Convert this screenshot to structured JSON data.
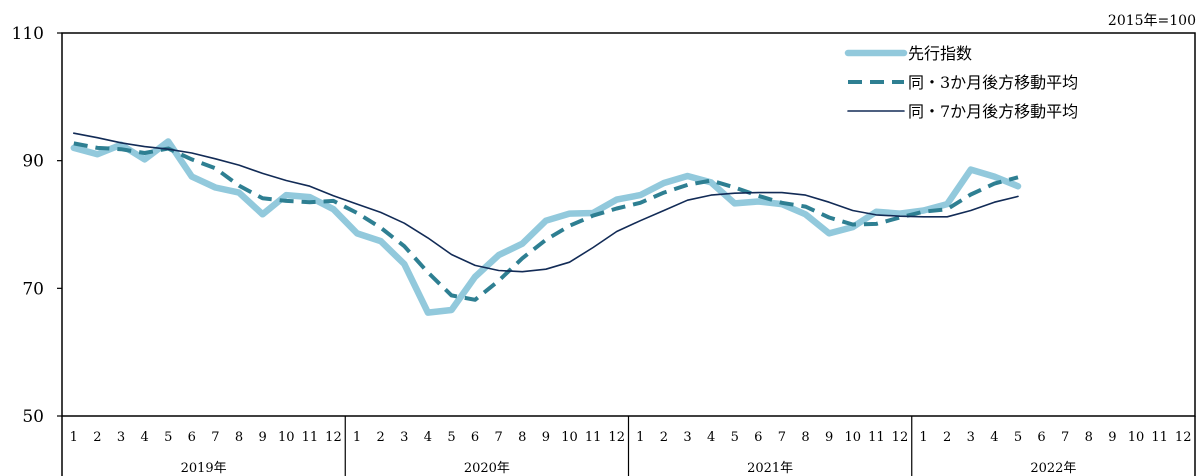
{
  "chart_data": {
    "type": "line",
    "unit_note": "2015年=100",
    "ylim": [
      50,
      110
    ],
    "yticks": [
      50,
      70,
      90,
      110
    ],
    "grid": false,
    "legend_position": "top-right",
    "month_labels": [
      "1",
      "2",
      "3",
      "4",
      "5",
      "6",
      "7",
      "8",
      "9",
      "10",
      "11",
      "12"
    ],
    "years": [
      {
        "label": "2019年",
        "months": 12
      },
      {
        "label": "2020年",
        "months": 12
      },
      {
        "label": "2021年",
        "months": 12
      },
      {
        "label": "2022年",
        "months": 12
      }
    ],
    "series": [
      {
        "name": "先行指数",
        "color": "#92c9dc",
        "style": "thick",
        "values": [
          92.0,
          91.0,
          92.5,
          90.2,
          93.0,
          87.5,
          85.8,
          85.0,
          81.6,
          84.6,
          84.3,
          82.4,
          78.6,
          77.4,
          73.8,
          66.2,
          66.6,
          71.8,
          75.2,
          77.0,
          80.6,
          81.7,
          81.8,
          83.9,
          84.6,
          86.5,
          87.6,
          86.6,
          83.3,
          83.6,
          83.2,
          81.6,
          78.6,
          79.6,
          82.0,
          81.7,
          82.2,
          83.2,
          88.6,
          87.5,
          86.0
        ]
      },
      {
        "name": "同・3か月後方移動平均",
        "color": "#2e7f92",
        "style": "dashed",
        "values": [
          92.7,
          92.0,
          91.8,
          91.2,
          91.9,
          90.2,
          88.8,
          86.1,
          84.1,
          83.7,
          83.5,
          83.7,
          81.8,
          79.5,
          76.6,
          72.5,
          68.9,
          68.2,
          71.2,
          74.7,
          77.6,
          79.8,
          81.4,
          82.5,
          83.4,
          85.0,
          86.2,
          86.9,
          85.8,
          84.5,
          83.4,
          82.8,
          81.1,
          80.0,
          80.1,
          81.1,
          82.0,
          82.4,
          84.7,
          86.4,
          87.4
        ]
      },
      {
        "name": "同・7か月後方移動平均",
        "color": "#122b56",
        "style": "thin",
        "values": [
          94.3,
          93.6,
          92.8,
          92.2,
          91.8,
          91.2,
          90.3,
          89.3,
          88.0,
          86.9,
          86.0,
          84.5,
          83.2,
          81.9,
          80.2,
          77.9,
          75.3,
          73.6,
          72.8,
          72.6,
          73.0,
          74.1,
          76.4,
          78.9,
          80.6,
          82.2,
          83.8,
          84.6,
          84.9,
          85.0,
          85.0,
          84.6,
          83.5,
          82.2,
          81.5,
          81.3,
          81.2,
          81.2,
          82.2,
          83.5,
          84.4
        ]
      }
    ]
  }
}
